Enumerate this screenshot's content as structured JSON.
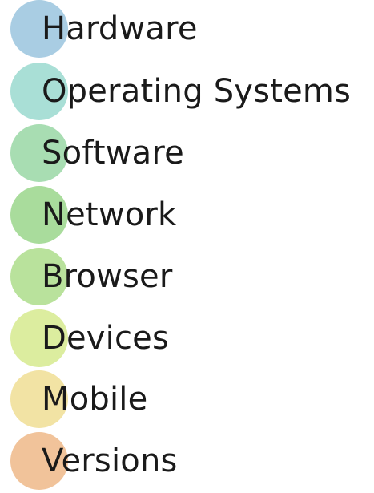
{
  "items": [
    {
      "label": "Hardware",
      "color": "#a9cde3"
    },
    {
      "label": "Operating Systems",
      "color": "#a9dfd6"
    },
    {
      "label": "Software",
      "color": "#a8ddb2"
    },
    {
      "label": "Network",
      "color": "#a9dc9c"
    },
    {
      "label": "Browser",
      "color": "#b9e29c"
    },
    {
      "label": "Devices",
      "color": "#dced9f"
    },
    {
      "label": "Mobile",
      "color": "#f2e3a4"
    },
    {
      "label": "Versions",
      "color": "#f1c39a"
    }
  ]
}
